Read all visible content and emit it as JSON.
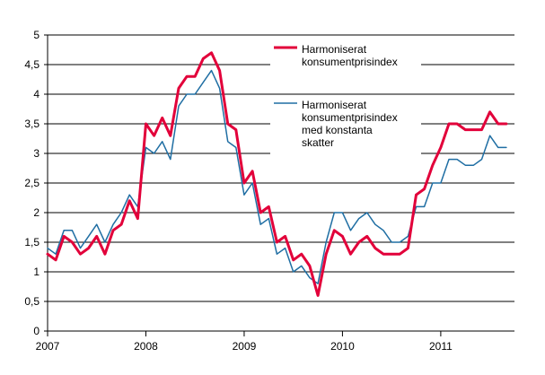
{
  "chart_data": {
    "type": "line",
    "ylim": [
      0,
      5
    ],
    "xlim": [
      2007.0,
      2011.75
    ],
    "y_ticks": [
      0,
      0.5,
      1,
      1.5,
      2,
      2.5,
      3,
      3.5,
      4,
      4.5,
      5
    ],
    "y_tick_labels": [
      "0",
      "0,5",
      "1",
      "1,5",
      "2",
      "2,5",
      "3",
      "3,5",
      "4",
      "4,5",
      "5"
    ],
    "x_ticks": [
      2007,
      2008,
      2009,
      2010,
      2011
    ],
    "x_tick_labels": [
      "2007",
      "2008",
      "2009",
      "2010",
      "2011"
    ],
    "grid": "horizontal",
    "legend_position": "top-right",
    "start": "2007-01",
    "frequency": "monthly",
    "series": [
      {
        "name": "Harmoniserat konsumentprisindex",
        "legend_lines": [
          "Harmoniserat",
          "konsumentprisindex"
        ],
        "color": "#e2003a",
        "values": [
          1.3,
          1.2,
          1.6,
          1.5,
          1.3,
          1.4,
          1.6,
          1.3,
          1.7,
          1.8,
          2.2,
          1.9,
          3.5,
          3.3,
          3.6,
          3.3,
          4.1,
          4.3,
          4.3,
          4.6,
          4.7,
          4.4,
          3.5,
          3.4,
          2.5,
          2.7,
          2.0,
          2.1,
          1.5,
          1.6,
          1.2,
          1.3,
          1.1,
          0.6,
          1.3,
          1.7,
          1.6,
          1.3,
          1.5,
          1.6,
          1.4,
          1.3,
          1.3,
          1.3,
          1.4,
          2.3,
          2.4,
          2.8,
          3.1,
          3.5,
          3.5,
          3.4,
          3.4,
          3.4,
          3.7,
          3.5,
          3.5
        ]
      },
      {
        "name": "Harmoniserat konsumentprisindex med konstanta skatter",
        "legend_lines": [
          "Harmoniserat",
          "konsumentprisindex",
          "med konstanta",
          "skatter"
        ],
        "color": "#1f6ea3",
        "values": [
          1.4,
          1.3,
          1.7,
          1.7,
          1.4,
          1.6,
          1.8,
          1.5,
          1.8,
          2.0,
          2.3,
          2.1,
          3.1,
          3.0,
          3.2,
          2.9,
          3.8,
          4.0,
          4.0,
          4.2,
          4.4,
          4.1,
          3.2,
          3.1,
          2.3,
          2.5,
          1.8,
          1.9,
          1.3,
          1.4,
          1.0,
          1.1,
          0.9,
          0.8,
          1.5,
          2.0,
          2.0,
          1.7,
          1.9,
          2.0,
          1.8,
          1.7,
          1.5,
          1.5,
          1.6,
          2.1,
          2.1,
          2.5,
          2.5,
          2.9,
          2.9,
          2.8,
          2.8,
          2.9,
          3.3,
          3.1,
          3.1
        ]
      }
    ]
  }
}
